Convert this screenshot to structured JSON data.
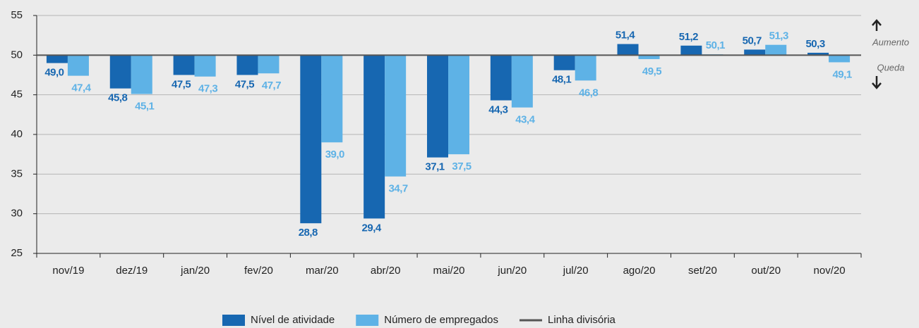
{
  "chart_data": {
    "type": "bar",
    "categories": [
      "nov/19",
      "dez/19",
      "jan/20",
      "fev/20",
      "mar/20",
      "abr/20",
      "mai/20",
      "jun/20",
      "jul/20",
      "ago/20",
      "set/20",
      "out/20",
      "nov/20"
    ],
    "series": [
      {
        "name": "Nível de atividade",
        "color": "#1767b1",
        "label_color": "#1767b1",
        "values": [
          49.0,
          45.8,
          47.5,
          47.5,
          28.8,
          29.4,
          37.1,
          44.3,
          48.1,
          51.4,
          51.2,
          50.7,
          50.3
        ],
        "value_labels": [
          "49,0",
          "45,8",
          "47,5",
          "47,5",
          "28,8",
          "29,4",
          "37,1",
          "44,3",
          "48,1",
          "51,4",
          "51,2",
          "50,7",
          "50,3"
        ]
      },
      {
        "name": "Número de empregados",
        "color": "#5eb2e6",
        "label_color": "#5eb2e6",
        "values": [
          47.4,
          45.1,
          47.3,
          47.7,
          39.0,
          34.7,
          37.5,
          43.4,
          46.8,
          49.5,
          50.1,
          51.3,
          49.1
        ],
        "value_labels": [
          "47,4",
          "45,1",
          "47,3",
          "47,7",
          "39,0",
          "34,7",
          "37,5",
          "43,4",
          "46,8",
          "49,5",
          "50,1",
          "51,3",
          "49,1"
        ]
      }
    ],
    "reference_line": {
      "name": "Linha divisória",
      "value": 50,
      "color": "#555555"
    },
    "annotations": [
      "Aumento",
      "Queda"
    ],
    "ylim": [
      25,
      55
    ],
    "yticks": [
      25,
      30,
      35,
      40,
      45,
      50,
      55
    ],
    "grid": true
  }
}
